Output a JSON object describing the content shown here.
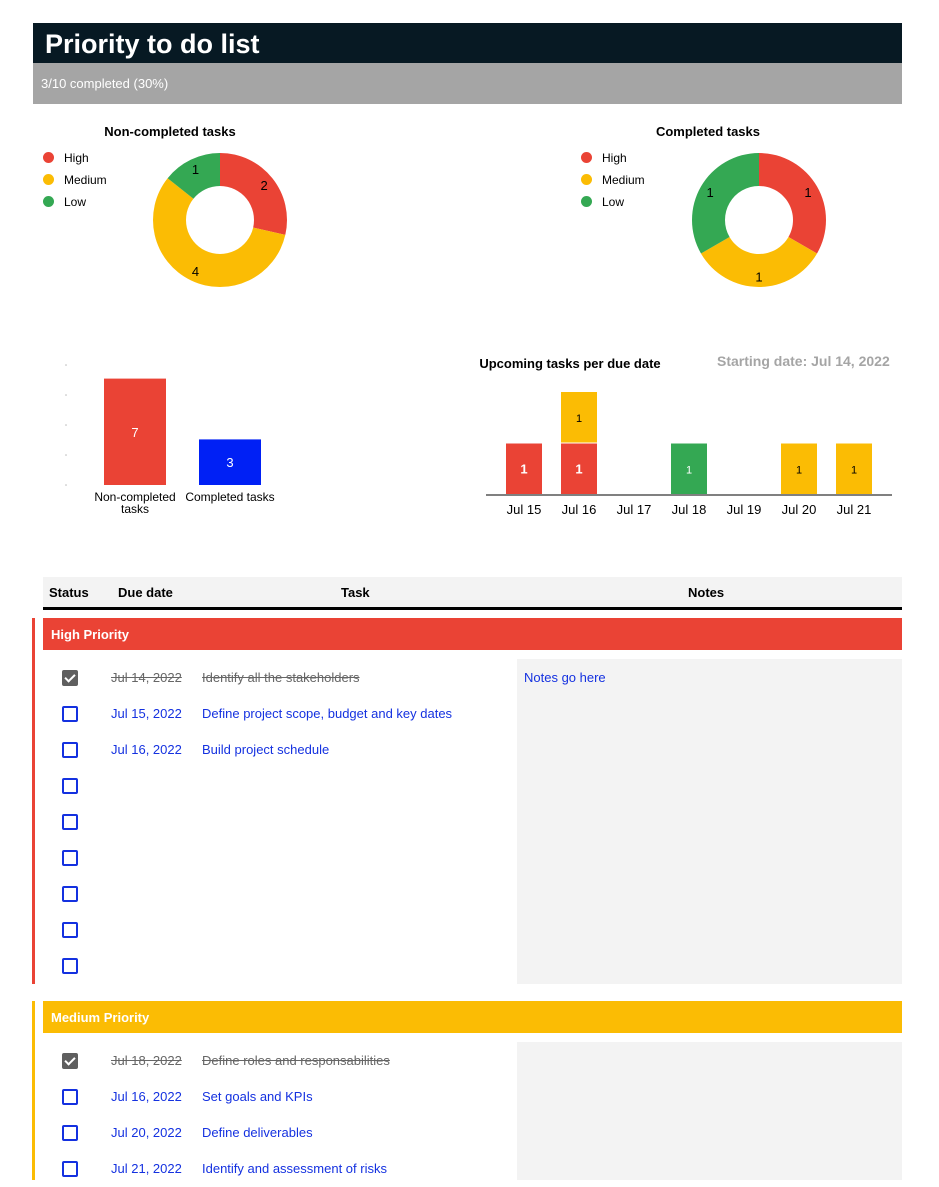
{
  "header": {
    "title": "Priority to do list",
    "progress": "3/10 completed (30%)"
  },
  "colors": {
    "high": "#ea4335",
    "medium": "#fbbc04",
    "low": "#34a853",
    "completed": "#0020f5",
    "header_bg": "#071923",
    "progress_bg": "#a5a5a5",
    "link": "#1431e0"
  },
  "legend": [
    "High",
    "Medium",
    "Low"
  ],
  "charts": {
    "non_completed_donut": {
      "type": "pie",
      "title": "Non-completed tasks",
      "categories": [
        "High",
        "Medium",
        "Low"
      ],
      "values": [
        2,
        4,
        1
      ]
    },
    "completed_donut": {
      "type": "pie",
      "title": "Completed tasks",
      "categories": [
        "High",
        "Medium",
        "Low"
      ],
      "values": [
        1,
        1,
        1
      ]
    },
    "totals_bar": {
      "type": "bar",
      "categories": [
        "Non-completed tasks",
        "Completed tasks"
      ],
      "values": [
        7,
        3
      ]
    },
    "upcoming": {
      "type": "bar",
      "title": "Upcoming tasks per due date",
      "start_label": "Starting date: Jul 14, 2022",
      "categories": [
        "Jul 15",
        "Jul 16",
        "Jul 17",
        "Jul 18",
        "Jul 19",
        "Jul 20",
        "Jul 21"
      ],
      "series": [
        {
          "key": "high",
          "values": [
            1,
            1,
            0,
            0,
            0,
            0,
            0
          ]
        },
        {
          "key": "low",
          "values": [
            0,
            0,
            0,
            1,
            0,
            0,
            0
          ]
        },
        {
          "key": "medium",
          "values": [
            0,
            1,
            0,
            0,
            0,
            1,
            1
          ]
        }
      ]
    }
  },
  "table": {
    "headers": {
      "status": "Status",
      "due": "Due date",
      "task": "Task",
      "notes": "Notes"
    },
    "sections": [
      {
        "label": "High Priority",
        "notes": "Notes go here",
        "rows": [
          {
            "done": true,
            "due": "Jul 14, 2022",
            "task": "Identify all the stakeholders"
          },
          {
            "done": false,
            "due": "Jul 15, 2022",
            "task": "Define project scope, budget and key dates"
          },
          {
            "done": false,
            "due": "Jul 16, 2022",
            "task": "Build project schedule"
          },
          {
            "done": false,
            "due": "",
            "task": ""
          },
          {
            "done": false,
            "due": "",
            "task": ""
          },
          {
            "done": false,
            "due": "",
            "task": ""
          },
          {
            "done": false,
            "due": "",
            "task": ""
          },
          {
            "done": false,
            "due": "",
            "task": ""
          },
          {
            "done": false,
            "due": "",
            "task": ""
          }
        ]
      },
      {
        "label": "Medium Priority",
        "notes": "",
        "rows": [
          {
            "done": true,
            "due": "Jul 18, 2022",
            "task": "Define roles and responsabilities"
          },
          {
            "done": false,
            "due": "Jul 16, 2022",
            "task": "Set goals and KPIs"
          },
          {
            "done": false,
            "due": "Jul 20, 2022",
            "task": "Define deliverables"
          },
          {
            "done": false,
            "due": "Jul 21, 2022",
            "task": "Identify and assessment of risks"
          }
        ]
      }
    ]
  }
}
